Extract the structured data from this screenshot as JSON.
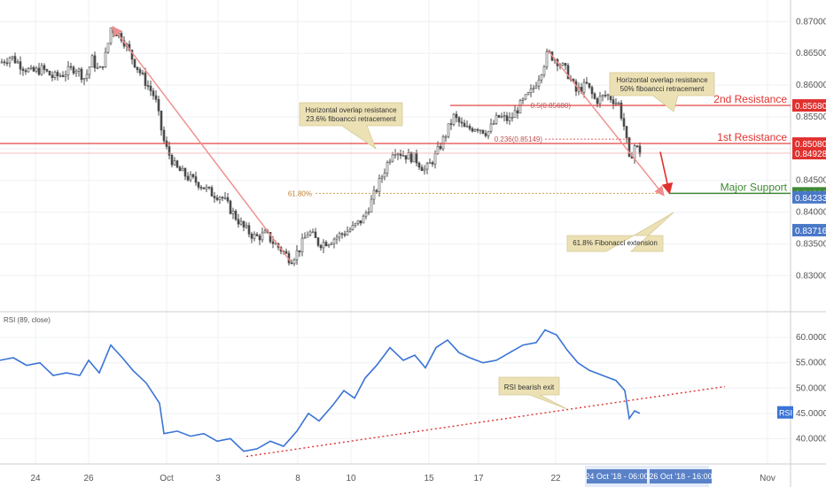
{
  "colors": {
    "up": "#4a4a4a",
    "down": "#4a4a4a",
    "grid": "#eef0f3",
    "resistance": "#e0312f",
    "support": "#3f8a35",
    "rsi": "#3a73d6",
    "fib_line": "#f08c8c",
    "fib_dot": "#c9a24a",
    "callout_bg": "#ece1b4",
    "price_blue": "#4a78c8",
    "date_tag": "#5a82c8"
  },
  "x_labels": [
    "24",
    "26",
    "Oct",
    "3",
    "8",
    "10",
    "15",
    "17",
    "22",
    "Nov"
  ],
  "date_tags": [
    "24 Oct '18 - 06:00",
    "26 Oct '18 - 16:00"
  ],
  "chart_data": [
    {
      "type": "candlestick",
      "ylim": [
        0.826,
        0.872
      ],
      "y_ticks": [
        "0.87000",
        "0.86500",
        "0.86000",
        "0.85500",
        "0.85000",
        "0.84500",
        "0.84000",
        "0.83500",
        "0.83000"
      ],
      "y_tick_values": [
        0.87,
        0.865,
        0.86,
        0.855,
        0.85,
        0.845,
        0.84,
        0.835,
        0.83
      ],
      "price_path": [
        [
          0,
          0.8635
        ],
        [
          12,
          0.8645
        ],
        [
          25,
          0.863
        ],
        [
          35,
          0.862
        ],
        [
          48,
          0.8625
        ],
        [
          60,
          0.8612
        ],
        [
          72,
          0.8618
        ],
        [
          85,
          0.8628
        ],
        [
          96,
          0.861
        ],
        [
          104,
          0.864
        ],
        [
          112,
          0.862
        ],
        [
          120,
          0.865
        ],
        [
          125,
          0.869
        ],
        [
          138,
          0.8675
        ],
        [
          150,
          0.864
        ],
        [
          162,
          0.861
        ],
        [
          175,
          0.858
        ],
        [
          182,
          0.853
        ],
        [
          186,
          0.8505
        ],
        [
          198,
          0.847
        ],
        [
          212,
          0.8455
        ],
        [
          225,
          0.8445
        ],
        [
          238,
          0.843
        ],
        [
          250,
          0.8425
        ],
        [
          262,
          0.84
        ],
        [
          275,
          0.8375
        ],
        [
          288,
          0.836
        ],
        [
          300,
          0.8365
        ],
        [
          310,
          0.835
        ],
        [
          318,
          0.834
        ],
        [
          328,
          0.8325
        ],
        [
          337,
          0.834
        ],
        [
          348,
          0.837
        ],
        [
          360,
          0.835
        ],
        [
          372,
          0.8355
        ],
        [
          385,
          0.8365
        ],
        [
          398,
          0.8375
        ],
        [
          410,
          0.839
        ],
        [
          420,
          0.842
        ],
        [
          432,
          0.846
        ],
        [
          444,
          0.85
        ],
        [
          456,
          0.849
        ],
        [
          468,
          0.8485
        ],
        [
          480,
          0.8465
        ],
        [
          492,
          0.849
        ],
        [
          502,
          0.852
        ],
        [
          512,
          0.855
        ],
        [
          525,
          0.853
        ],
        [
          538,
          0.8535
        ],
        [
          550,
          0.8525
        ],
        [
          562,
          0.855
        ],
        [
          575,
          0.8545
        ],
        [
          588,
          0.857
        ],
        [
          600,
          0.859
        ],
        [
          610,
          0.862
        ],
        [
          618,
          0.865
        ],
        [
          628,
          0.864
        ],
        [
          640,
          0.862
        ],
        [
          650,
          0.859
        ],
        [
          662,
          0.86
        ],
        [
          672,
          0.8575
        ],
        [
          685,
          0.8585
        ],
        [
          698,
          0.857
        ],
        [
          705,
          0.853
        ],
        [
          710,
          0.848
        ],
        [
          716,
          0.8505
        ],
        [
          722,
          0.8495
        ]
      ],
      "levels": [
        {
          "label": "2nd Resistance",
          "value": 0.8568,
          "value_text": "0.85680"
        },
        {
          "label": "1st Resistance",
          "value": 0.8508,
          "value_text": "0.85080"
        },
        {
          "label": "Major Support",
          "value": 0.84296,
          "value_text": "0.84296"
        }
      ],
      "price_tags": [
        {
          "text": "0.84928",
          "value": 0.84928,
          "kind": "current"
        },
        {
          "text": "0.84233",
          "value": 0.84233,
          "kind": "blue"
        },
        {
          "text": "0.83716",
          "value": 0.83716,
          "kind": "blue"
        }
      ],
      "fib_labels": {
        "fib_618": "61.80%",
        "fib_236": "0.236(0.85149)",
        "fib_5": "0.5(0.85680)"
      },
      "callouts": [
        {
          "lines": [
            "Horizontal overlap resistance",
            "23.6% fiboancci retracement"
          ]
        },
        {
          "lines": [
            "Horizontal overlap resistance",
            "50% fiboancci retracement"
          ]
        },
        {
          "lines": [
            "61.8% Fibonacci extension"
          ]
        }
      ]
    },
    {
      "type": "line",
      "title": "RSI (89, close)",
      "badge": "RSI",
      "ylim": [
        35,
        63
      ],
      "y_ticks": [
        "60.0000",
        "55.0000",
        "50.0000",
        "45.0000",
        "40.0000"
      ],
      "y_tick_values": [
        60,
        55,
        50,
        45,
        40
      ],
      "callout": "RSI bearish exit",
      "rsi_path": [
        [
          0,
          55.5
        ],
        [
          15,
          56.0
        ],
        [
          30,
          54.5
        ],
        [
          45,
          55.0
        ],
        [
          60,
          52.5
        ],
        [
          75,
          53.0
        ],
        [
          90,
          52.5
        ],
        [
          100,
          55.5
        ],
        [
          112,
          53.0
        ],
        [
          125,
          58.5
        ],
        [
          138,
          56.0
        ],
        [
          150,
          53.5
        ],
        [
          165,
          51.0
        ],
        [
          180,
          47.0
        ],
        [
          185,
          41.0
        ],
        [
          200,
          41.5
        ],
        [
          215,
          40.5
        ],
        [
          230,
          41.0
        ],
        [
          245,
          39.5
        ],
        [
          260,
          40.0
        ],
        [
          275,
          37.5
        ],
        [
          290,
          38.0
        ],
        [
          305,
          39.5
        ],
        [
          320,
          38.5
        ],
        [
          335,
          41.5
        ],
        [
          348,
          45.0
        ],
        [
          360,
          43.5
        ],
        [
          375,
          46.5
        ],
        [
          388,
          49.5
        ],
        [
          400,
          48.0
        ],
        [
          412,
          52.0
        ],
        [
          425,
          54.5
        ],
        [
          440,
          58.0
        ],
        [
          455,
          55.5
        ],
        [
          468,
          56.5
        ],
        [
          480,
          54.0
        ],
        [
          492,
          58.0
        ],
        [
          505,
          59.5
        ],
        [
          518,
          57.0
        ],
        [
          530,
          56.0
        ],
        [
          545,
          55.0
        ],
        [
          560,
          55.5
        ],
        [
          575,
          57.0
        ],
        [
          590,
          58.5
        ],
        [
          605,
          59.0
        ],
        [
          615,
          61.5
        ],
        [
          628,
          60.5
        ],
        [
          640,
          57.5
        ],
        [
          652,
          55.0
        ],
        [
          665,
          53.5
        ],
        [
          680,
          52.5
        ],
        [
          695,
          51.5
        ],
        [
          705,
          49.5
        ],
        [
          710,
          44.0
        ],
        [
          716,
          45.5
        ],
        [
          722,
          45.0
        ]
      ]
    }
  ]
}
